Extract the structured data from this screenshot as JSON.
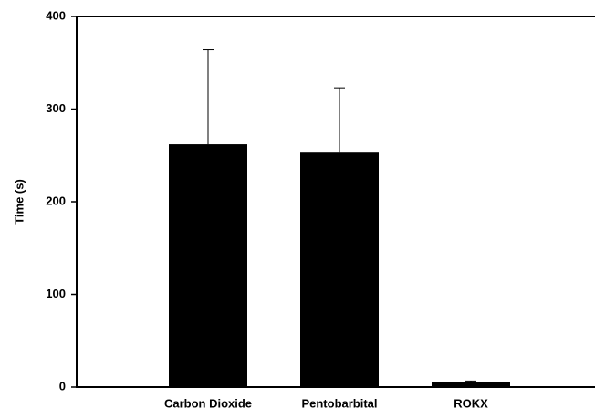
{
  "chart_data": {
    "type": "bar",
    "y_label": "Time (s)",
    "categories": [
      "Carbon Dioxide",
      "Pentobarbital",
      "ROKX"
    ],
    "values": [
      262,
      253,
      5
    ],
    "errors": [
      102,
      70,
      1.5
    ],
    "color": "#000000",
    "ylim": [
      0,
      400
    ],
    "yticks": [
      0,
      100,
      200,
      300,
      400
    ]
  }
}
